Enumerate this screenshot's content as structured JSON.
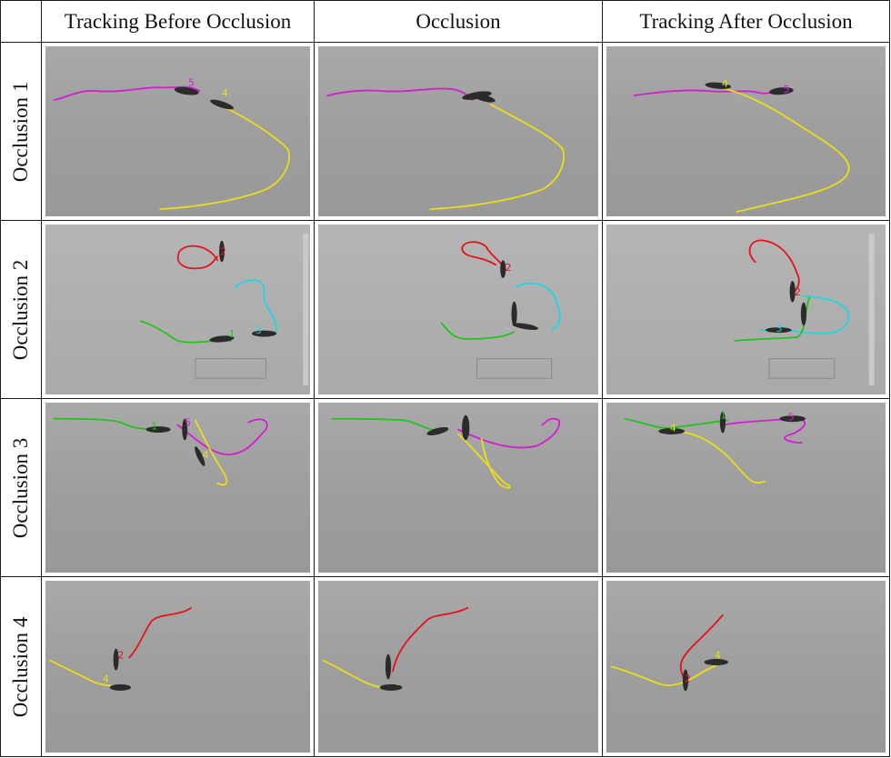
{
  "columns": [
    "Tracking Before Occlusion",
    "Occlusion",
    "Tracking After Occlusion"
  ],
  "rows": [
    {
      "label": "Occlusion 1",
      "panels": [
        {
          "stage": "before",
          "ids": [
            "5",
            "4"
          ]
        },
        {
          "stage": "occlusion",
          "ids": []
        },
        {
          "stage": "after",
          "ids": [
            "4",
            "5"
          ]
        }
      ]
    },
    {
      "label": "Occlusion 2",
      "panels": [
        {
          "stage": "before",
          "ids": [
            "2",
            "3",
            "1"
          ]
        },
        {
          "stage": "occlusion",
          "ids": [
            "2"
          ]
        },
        {
          "stage": "after",
          "ids": [
            "2",
            "3"
          ]
        }
      ]
    },
    {
      "label": "Occlusion 3",
      "panels": [
        {
          "stage": "before",
          "ids": [
            "1",
            "5",
            "4"
          ]
        },
        {
          "stage": "occlusion",
          "ids": []
        },
        {
          "stage": "after",
          "ids": [
            "4",
            "1",
            "5"
          ]
        }
      ]
    },
    {
      "label": "Occlusion 4",
      "panels": [
        {
          "stage": "before",
          "ids": [
            "2",
            "4"
          ]
        },
        {
          "stage": "occlusion",
          "ids": []
        },
        {
          "stage": "after",
          "ids": [
            "4",
            "2"
          ]
        }
      ]
    }
  ],
  "track_colors": {
    "1": "#22c31a",
    "2": "#e3121b",
    "3": "#1ed6e2",
    "4": "#e8df17",
    "5": "#d41cd0"
  }
}
